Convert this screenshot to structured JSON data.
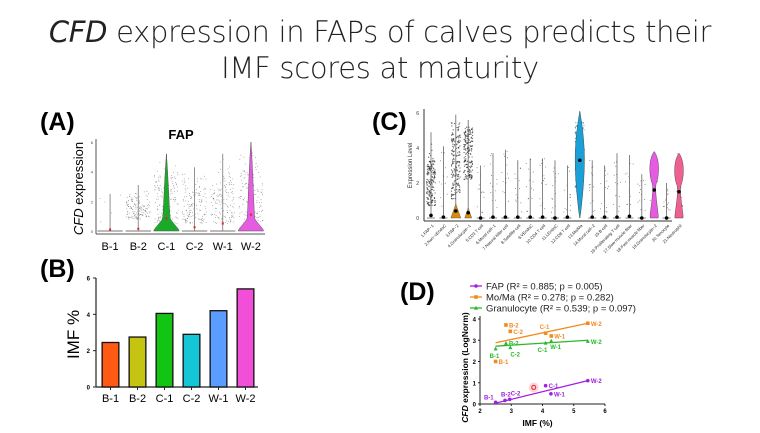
{
  "slide": {
    "title_italic": "CFD",
    "title_line1_rest": " expression in FAPs of calves predicts their",
    "title_line2": "IMF scores at maturity"
  },
  "panel_labels": {
    "a": "(A)",
    "b": "(B)",
    "c": "(C)",
    "d": "(D)"
  },
  "chart_data": [
    {
      "id": "A",
      "type": "violin",
      "title": "FAP",
      "ylabel_italic": "CFD",
      "ylabel_rest": " expression",
      "ylim": [
        0,
        6
      ],
      "yticks": [
        0,
        2,
        4,
        6
      ],
      "categories": [
        "B-1",
        "B-2",
        "C-1",
        "C-2",
        "W-1",
        "W-2"
      ],
      "colors": [
        "#888888",
        "#888888",
        "#1aaa2a",
        "#888888",
        "#888888",
        "#e65ce0"
      ],
      "max_values": [
        2.5,
        3.1,
        5.2,
        4.3,
        5.2,
        6.0
      ],
      "median_markers": [
        0.1,
        0.15,
        0.85,
        0.25,
        0.5,
        1.1
      ],
      "point_band": [
        [
          0,
          0
        ],
        [
          0.8,
          2.8
        ],
        [
          0.5,
          5.0
        ],
        [
          0.5,
          4.2
        ],
        [
          0.5,
          5.0
        ],
        [
          0.5,
          5.8
        ]
      ],
      "violin_shapes": [
        false,
        false,
        true,
        false,
        false,
        true
      ]
    },
    {
      "id": "B",
      "type": "bar",
      "xlabel": "",
      "ylabel": "IMF %",
      "ylim": [
        0,
        6
      ],
      "yticks": [
        0,
        2,
        4,
        6
      ],
      "categories": [
        "B-1",
        "B-2",
        "C-1",
        "C-2",
        "W-1",
        "W-2"
      ],
      "values": [
        2.45,
        2.75,
        4.05,
        2.9,
        4.2,
        5.4
      ],
      "colors": [
        "#ff5a14",
        "#c5c410",
        "#14c414",
        "#14c6d6",
        "#5a9cff",
        "#f24fd8"
      ]
    },
    {
      "id": "C",
      "type": "violin",
      "ylabel": "Expression Level",
      "ylim": [
        0,
        6
      ],
      "yticks": [
        0,
        2,
        4,
        6
      ],
      "categories": [
        "1.FAP−1",
        "2.Non−vEndoC",
        "3.FAP−2",
        "4.Granulocyte−1",
        "5.CD3 T cell",
        "6.Mural cell−1",
        "7.Natural killer cell",
        "8.Satellite cell",
        "9.VEndoC",
        "10.CD4 T cell",
        "11.LEndoC",
        "12.CD8 T cell",
        "13.Mo/Ma",
        "14.Mural cell−2",
        "15.B cell",
        "16.Proliferating T cell",
        "17.Slow muscle fiber",
        "18.Fast muscle fiber",
        "19.Granulocyte−2",
        "20.Tenocyte",
        "21.Neutrophil"
      ],
      "max_values": [
        4.9,
        4.1,
        5.9,
        5.6,
        3.0,
        3.7,
        3.9,
        3.3,
        3.4,
        3.4,
        3.3,
        3.0,
        6.1,
        3.3,
        3.0,
        3.7,
        3.6,
        2.5,
        3.8,
        2.0,
        3.7
      ],
      "median_markers": [
        0.15,
        0.05,
        0.4,
        0.3,
        0.0,
        0.05,
        0.05,
        0.05,
        0.05,
        0.05,
        0.0,
        0.05,
        3.3,
        0.05,
        0.05,
        0.05,
        0.1,
        0.0,
        1.6,
        0.0,
        1.5
      ],
      "colors": [
        "#888888",
        "#888888",
        "#d98c0a",
        "#d98c0a",
        "#888888",
        "#888888",
        "#888888",
        "#888888",
        "#888888",
        "#888888",
        "#888888",
        "#888888",
        "#1a9fd6",
        "#888888",
        "#888888",
        "#888888",
        "#888888",
        "#888888",
        "#e65ce0",
        "#888888",
        "#ef5f8f"
      ]
    },
    {
      "id": "D",
      "type": "scatter",
      "xlabel": "IMF (%)",
      "ylabel_italic": "CFD",
      "ylabel_rest": " expression (LogNorm)",
      "xlim": [
        2,
        6
      ],
      "ylim": [
        0,
        4
      ],
      "xticks": [
        2,
        3,
        4,
        5,
        6
      ],
      "yticks": [
        0,
        1,
        2,
        3,
        4
      ],
      "legend_position": "top",
      "series": [
        {
          "name": "FAP",
          "stats": "(R² = 0.885; p = 0.005)",
          "color": "#a020e0",
          "marker": "circle",
          "points": [
            {
              "label": "B-1",
              "x": 2.5,
              "y": 0.08
            },
            {
              "label": "B-2",
              "x": 2.8,
              "y": 0.17
            },
            {
              "label": "C-2",
              "x": 2.95,
              "y": 0.22
            },
            {
              "label": "C-1",
              "x": 4.1,
              "y": 0.86
            },
            {
              "label": "W-1",
              "x": 4.27,
              "y": 0.48
            },
            {
              "label": "W-2",
              "x": 5.45,
              "y": 1.1
            }
          ],
          "fit": [
            [
              2.5,
              0.04
            ],
            [
              5.45,
              1.1
            ]
          ]
        },
        {
          "name": "Mo/Ma",
          "stats": "(R² = 0.278; p = 0.282)",
          "color": "#f28a1e",
          "marker": "square",
          "points": [
            {
              "label": "B-1",
              "x": 2.5,
              "y": 2.0
            },
            {
              "label": "B-2",
              "x": 2.83,
              "y": 3.72
            },
            {
              "label": "C-2",
              "x": 2.97,
              "y": 3.42
            },
            {
              "label": "C-1",
              "x": 4.1,
              "y": 3.33
            },
            {
              "label": "W-1",
              "x": 4.28,
              "y": 3.2
            },
            {
              "label": "W-2",
              "x": 5.45,
              "y": 3.8
            }
          ],
          "fit": [
            [
              2.5,
              2.88
            ],
            [
              5.45,
              3.8
            ]
          ]
        },
        {
          "name": "Granulocyte",
          "stats": "(R² = 0.539; p = 0.097)",
          "color": "#2ab82a",
          "marker": "triangle",
          "points": [
            {
              "label": "B-1",
              "x": 2.5,
              "y": 2.6
            },
            {
              "label": "B-2",
              "x": 2.83,
              "y": 2.86
            },
            {
              "label": "C-2",
              "x": 2.97,
              "y": 2.66
            },
            {
              "label": "C-1",
              "x": 4.1,
              "y": 2.87
            },
            {
              "label": "W-1",
              "x": 4.28,
              "y": 2.97
            },
            {
              "label": "W-2",
              "x": 5.45,
              "y": 2.95
            }
          ],
          "fit": [
            [
              2.5,
              2.72
            ],
            [
              5.45,
              3.0
            ]
          ]
        }
      ],
      "annotations": [
        {
          "type": "highlight-circle",
          "x": 3.72,
          "y": 0.78,
          "color": "#e8202a"
        }
      ]
    }
  ]
}
